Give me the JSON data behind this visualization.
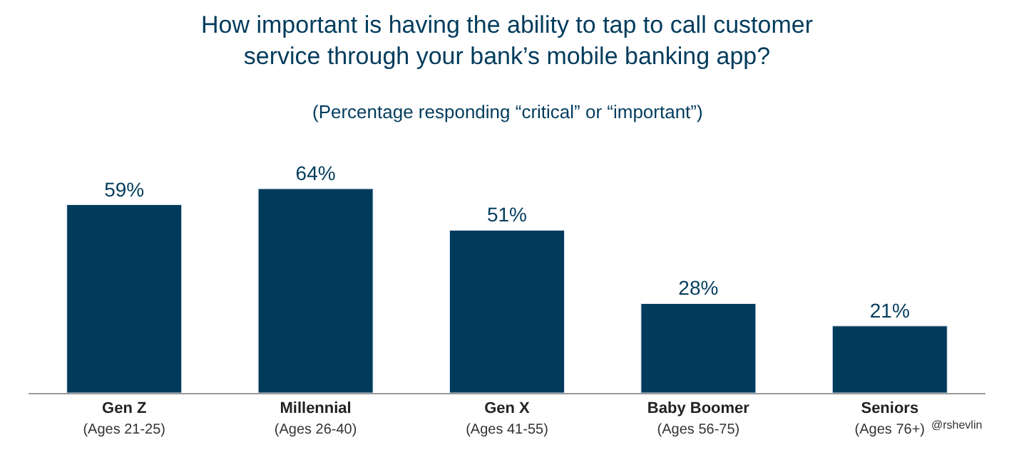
{
  "chart_data": {
    "type": "bar",
    "title": "How important is having the ability to tap to call customer\nservice through your bank’s mobile banking app?",
    "subtitle": "(Percentage responding “critical” or “important”)",
    "categories": [
      "Gen Z\n(Ages 21-25)",
      "Millennial\n(Ages 26-40)",
      "Gen X\n(Ages 41-55)",
      "Baby Boomer\n(Ages 56-75)",
      "Seniors\n(Ages 76+)"
    ],
    "values": [
      59,
      64,
      51,
      28,
      21
    ],
    "value_labels": [
      "59%",
      "64%",
      "51%",
      "28%",
      "21%"
    ],
    "color": "#003b5c",
    "tick_labels": "x",
    "legend": false,
    "annotations": [
      "@rshevlin"
    ]
  }
}
